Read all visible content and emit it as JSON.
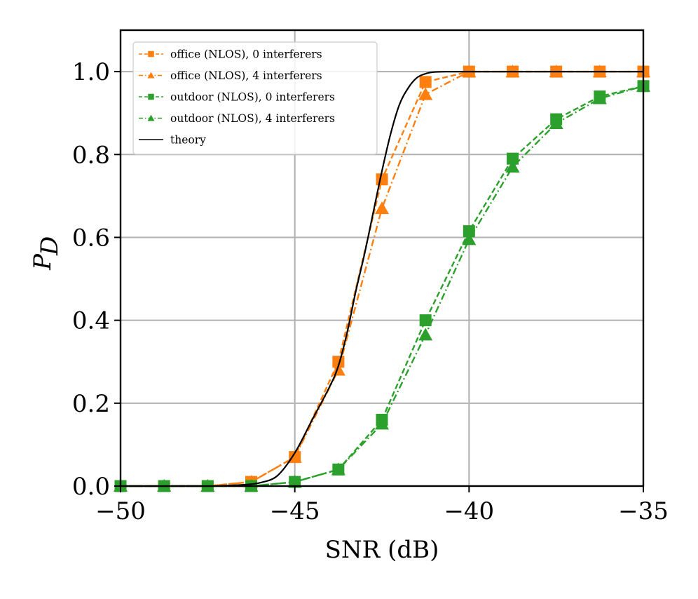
{
  "chart_data": {
    "type": "line",
    "title": "",
    "xlabel": "SNR (dB)",
    "ylabel": "P_D",
    "xlim": [
      -50,
      -35
    ],
    "ylim": [
      0,
      1.1
    ],
    "xticks": [
      -50,
      -45,
      -40,
      -35
    ],
    "xtick_labels": [
      "−50",
      "−45",
      "−40",
      "−35"
    ],
    "yticks": [
      0.0,
      0.2,
      0.4,
      0.6,
      0.8,
      1.0
    ],
    "ytick_labels": [
      "0.0",
      "0.2",
      "0.4",
      "0.6",
      "0.8",
      "1.0"
    ],
    "grid": true,
    "legend_position": "top-left",
    "x": [
      -50,
      -48.75,
      -47.5,
      -46.25,
      -45,
      -43.75,
      -42.5,
      -41.25,
      -40,
      -38.75,
      -37.5,
      -36.25,
      -35
    ],
    "series": [
      {
        "name": "office (NLOS), 0 interferers",
        "color": "#ff7f0e",
        "dash": "dashed",
        "marker": "square",
        "values": [
          0.0,
          0.0,
          0.0,
          0.01,
          0.07,
          0.3,
          0.74,
          0.975,
          1.0,
          1.0,
          1.0,
          1.0,
          1.0
        ]
      },
      {
        "name": "office (NLOS), 4 interferers",
        "color": "#ff7f0e",
        "dash": "dashdot",
        "marker": "triangle",
        "values": [
          0.0,
          0.0,
          0.0,
          0.01,
          0.07,
          0.28,
          0.67,
          0.945,
          1.0,
          1.0,
          1.0,
          1.0,
          1.0
        ]
      },
      {
        "name": "outdoor (NLOS), 0 interferers",
        "color": "#2ca02c",
        "dash": "dashed",
        "marker": "square",
        "values": [
          0.0,
          0.0,
          0.0,
          0.0,
          0.01,
          0.04,
          0.16,
          0.4,
          0.615,
          0.79,
          0.885,
          0.94,
          0.965
        ]
      },
      {
        "name": "outdoor (NLOS), 4 interferers",
        "color": "#2ca02c",
        "dash": "dashdot",
        "marker": "triangle",
        "values": [
          0.0,
          0.0,
          0.0,
          0.0,
          0.01,
          0.04,
          0.15,
          0.365,
          0.595,
          0.77,
          0.875,
          0.935,
          0.965
        ]
      },
      {
        "name": "theory",
        "color": "#000000",
        "dash": "solid",
        "marker": "none",
        "curve": true,
        "x": [
          -50,
          -47.5,
          -47,
          -46.5,
          -46,
          -45.5,
          -45,
          -44.5,
          -44,
          -43.75,
          -43.5,
          -43.25,
          -43,
          -42.75,
          -42.5,
          -42.25,
          -42,
          -41.75,
          -41.5,
          -41.25,
          -41,
          -40.5,
          -40,
          -35
        ],
        "values": [
          0.0,
          0.0,
          0.001,
          0.003,
          0.008,
          0.025,
          0.08,
          0.16,
          0.24,
          0.29,
          0.37,
          0.47,
          0.56,
          0.66,
          0.76,
          0.85,
          0.92,
          0.96,
          0.985,
          0.995,
          0.999,
          1.0,
          1.0,
          1.0
        ]
      }
    ]
  }
}
